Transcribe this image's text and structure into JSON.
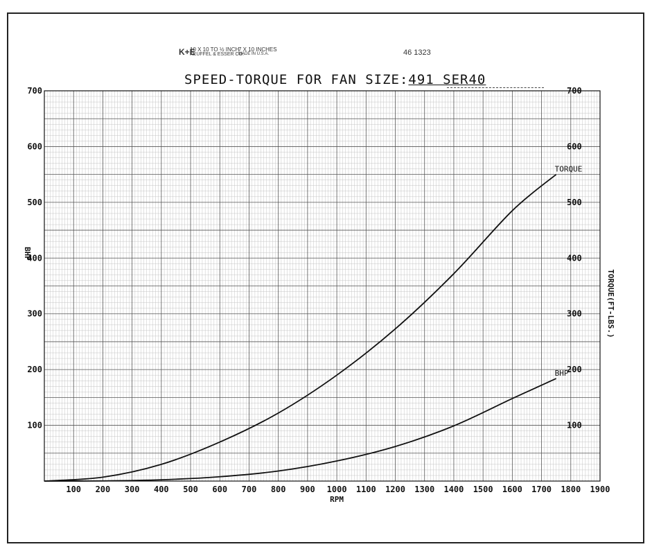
{
  "header": {
    "maker_logo": "K+E",
    "maker_line1": "10 X 10 TO ½ INCH",
    "maker_line2": "KEUFFEL & ESSER CO.",
    "scale_line1": "7 X 10 INCHES",
    "scale_line2": "MADE IN U.S.A.",
    "catalog_number": "46 1323"
  },
  "chart_data": {
    "type": "line",
    "title": "SPEED-TORQUE FOR FAN SIZE:491 SER40",
    "title_prefix": "SPEED-TORQUE FOR FAN SIZE:",
    "title_fan": "491 SER40",
    "xlabel": "RPM",
    "ylabel": "BHP",
    "y2label": "TORQUE(FT-LBS.)",
    "xlim": [
      0,
      1900
    ],
    "ylim": [
      0,
      700
    ],
    "y2lim": [
      0,
      700
    ],
    "x_ticks": [
      "100",
      "200",
      "300",
      "400",
      "500",
      "600",
      "700",
      "800",
      "900",
      "1000",
      "1100",
      "1200",
      "1300",
      "1400",
      "1500",
      "1600",
      "1700",
      "1800",
      "1900"
    ],
    "y_ticks": [
      "100",
      "200",
      "300",
      "400",
      "500",
      "600",
      "700"
    ],
    "y2_ticks": [
      "100",
      "200",
      "300",
      "400",
      "500",
      "600",
      "700"
    ],
    "grid": true,
    "series": [
      {
        "name": "TORQUE",
        "axis": "right",
        "x": [
          0,
          200,
          400,
          600,
          800,
          1000,
          1200,
          1400,
          1600,
          1750
        ],
        "y": [
          0,
          7,
          30,
          70,
          122,
          190,
          273,
          372,
          485,
          550
        ]
      },
      {
        "name": "BHP",
        "axis": "left",
        "x": [
          0,
          200,
          400,
          600,
          800,
          1000,
          1200,
          1400,
          1600,
          1750
        ],
        "y": [
          0,
          0.3,
          2.3,
          7.8,
          18,
          36,
          62,
          99,
          148,
          184
        ]
      }
    ]
  }
}
